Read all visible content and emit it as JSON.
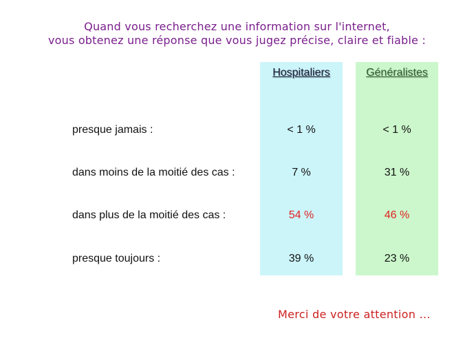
{
  "title": {
    "line1": "Quand vous recherchez une information sur l'internet,",
    "line2": "vous obtenez une réponse que vous jugez précise, claire et fiable :"
  },
  "columns": {
    "hospitaliers": "Hospitaliers",
    "generalistes": "Généralistes"
  },
  "rows": [
    {
      "label": "presque jamais :",
      "hospitaliers": "< 1 %",
      "generalistes": "< 1 %"
    },
    {
      "label": "dans moins de la moitié des cas :",
      "hospitaliers": "7 %",
      "generalistes": "31 %"
    },
    {
      "label": "dans plus de la moitié des cas :",
      "hospitaliers": "54 %",
      "generalistes": "46 %"
    },
    {
      "label": "presque toujours :",
      "hospitaliers": "39 %",
      "generalistes": "23 %"
    }
  ],
  "closing": "Merci de votre attention …",
  "colors": {
    "title": "#7a1f8c",
    "hospitaliers_bg": "#ccf5fa",
    "generalistes_bg": "#ccf7cc",
    "highlight": "#e02020",
    "closing": "#cc1f1f"
  }
}
